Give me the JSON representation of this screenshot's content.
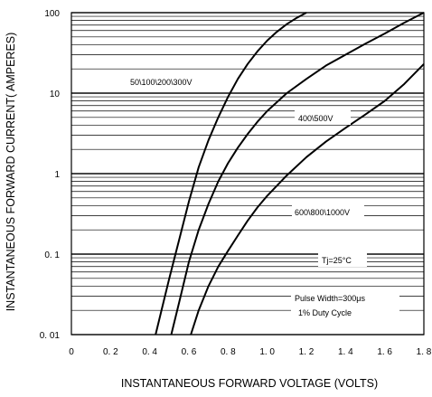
{
  "chart_data": {
    "type": "line",
    "xlabel": "INSTANTANEOUS FORWARD VOLTAGE (VOLTS)",
    "ylabel": "INSTANTANEOUS FORWARD CURRENT( AMPERES)",
    "xlim": [
      0,
      1.8
    ],
    "ylim": [
      0.01,
      100
    ],
    "yscale": "log",
    "grid": true,
    "x_tick_labels": [
      "0",
      "0. 2",
      "0. 4",
      "0. 6",
      "0. 8",
      "1. 0",
      "1. 2",
      "1. 4",
      "1. 6",
      "1. 8"
    ],
    "y_tick_labels": [
      "0. 01",
      "0. 1",
      "1",
      "10",
      "100"
    ],
    "series": [
      {
        "name": "50\\100\\200\\300V",
        "x": [
          0.43,
          0.46,
          0.5,
          0.55,
          0.6,
          0.65,
          0.7,
          0.75,
          0.8,
          0.85,
          0.9,
          0.95,
          1.0,
          1.05,
          1.1,
          1.15,
          1.2
        ],
        "y": [
          0.01,
          0.02,
          0.05,
          0.15,
          0.45,
          1.2,
          2.6,
          5.0,
          9.0,
          15,
          23,
          33,
          45,
          58,
          72,
          86,
          100
        ]
      },
      {
        "name": "400\\500V",
        "x": [
          0.51,
          0.55,
          0.6,
          0.65,
          0.7,
          0.75,
          0.8,
          0.85,
          0.9,
          0.95,
          1.0,
          1.1,
          1.2,
          1.3,
          1.4,
          1.5,
          1.6,
          1.7,
          1.8
        ],
        "y": [
          0.01,
          0.025,
          0.08,
          0.2,
          0.42,
          0.8,
          1.35,
          2.1,
          3.1,
          4.4,
          6.0,
          10,
          15,
          22,
          30,
          41,
          55,
          75,
          100
        ]
      },
      {
        "name": "600\\800\\1000V",
        "x": [
          0.61,
          0.65,
          0.7,
          0.75,
          0.8,
          0.85,
          0.9,
          0.95,
          1.0,
          1.1,
          1.2,
          1.3,
          1.4,
          1.5,
          1.6,
          1.7,
          1.8
        ],
        "y": [
          0.01,
          0.02,
          0.04,
          0.07,
          0.11,
          0.17,
          0.26,
          0.38,
          0.53,
          0.95,
          1.6,
          2.5,
          3.7,
          5.4,
          8.0,
          13,
          23
        ]
      }
    ],
    "annotations": {
      "temperature": "Tj=25°C",
      "pulse_width": "Pulse Width=300μs",
      "duty_cycle": "1% Duty Cycle"
    }
  }
}
